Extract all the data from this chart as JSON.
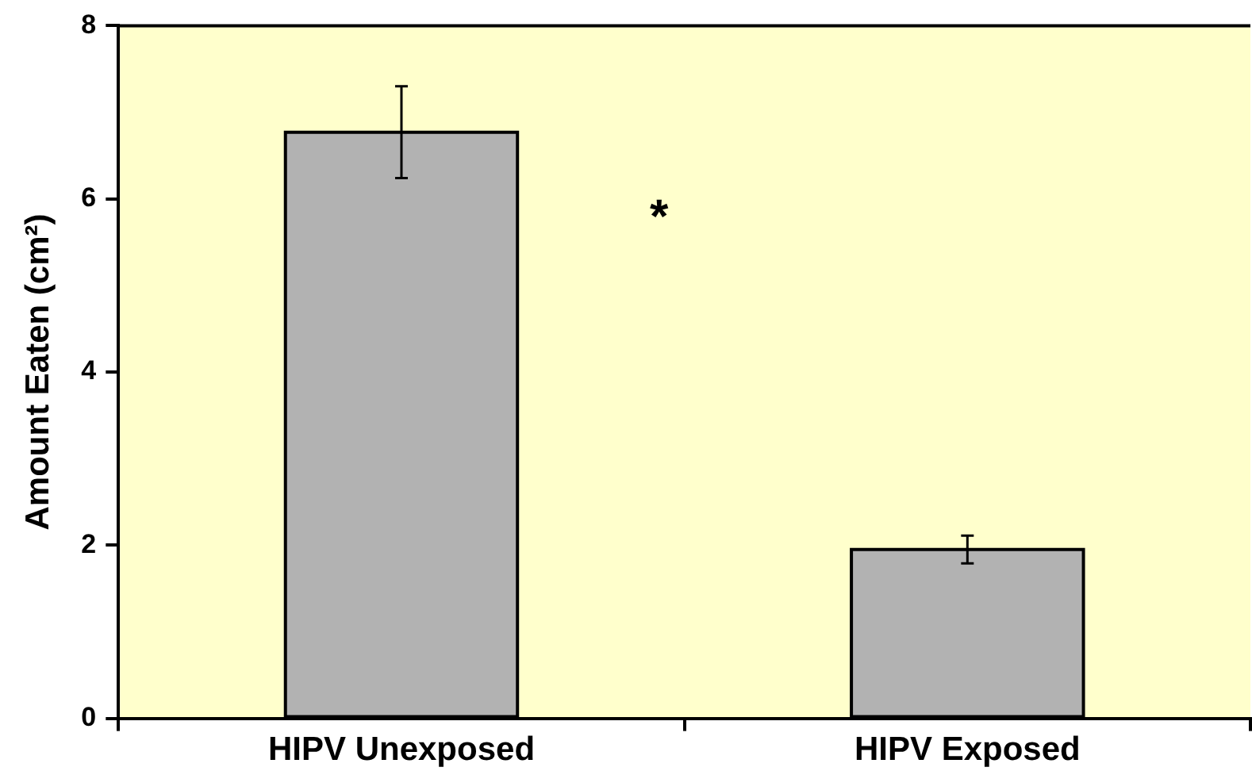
{
  "chart_data": {
    "type": "bar",
    "ylabel": "Amount Eaten (cm²)",
    "categories": [
      "HIPV Unexposed",
      "HIPV Exposed"
    ],
    "values": [
      6.77,
      1.95
    ],
    "errors": [
      0.53,
      0.16
    ],
    "color": "#b2b2b2",
    "ylim": [
      0,
      8
    ],
    "yticks": [
      0,
      2,
      4,
      6,
      8
    ],
    "grid": false,
    "legend": false,
    "annotations": [
      "*"
    ]
  }
}
